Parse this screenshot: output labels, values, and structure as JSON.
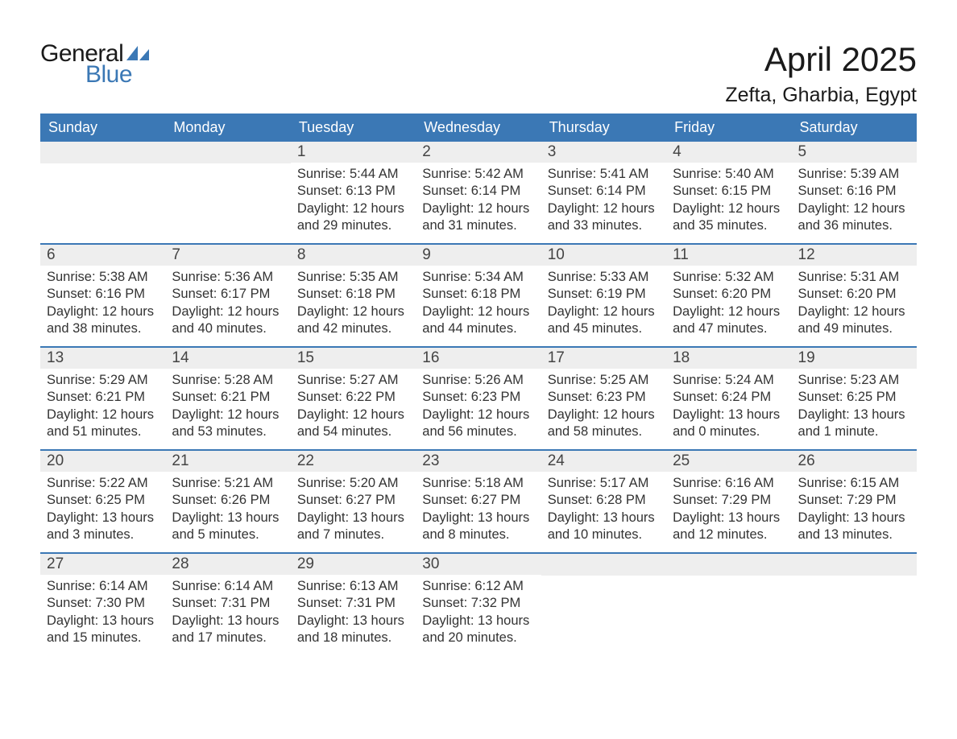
{
  "brand": {
    "word1": "General",
    "word2": "Blue",
    "icon_color": "#3b78b5"
  },
  "title": "April 2025",
  "location": "Zefta, Gharbia, Egypt",
  "header_bg": "#3b78b5",
  "header_fg": "#ffffff",
  "daynum_bg": "#eeeeee",
  "text_color": "#333333",
  "week_border": "#3b78b5",
  "days_of_week": [
    "Sunday",
    "Monday",
    "Tuesday",
    "Wednesday",
    "Thursday",
    "Friday",
    "Saturday"
  ],
  "weeks": [
    [
      {
        "n": "",
        "sunrise": "",
        "sunset": "",
        "daylight": ""
      },
      {
        "n": "",
        "sunrise": "",
        "sunset": "",
        "daylight": ""
      },
      {
        "n": "1",
        "sunrise": "Sunrise: 5:44 AM",
        "sunset": "Sunset: 6:13 PM",
        "daylight": "Daylight: 12 hours and 29 minutes."
      },
      {
        "n": "2",
        "sunrise": "Sunrise: 5:42 AM",
        "sunset": "Sunset: 6:14 PM",
        "daylight": "Daylight: 12 hours and 31 minutes."
      },
      {
        "n": "3",
        "sunrise": "Sunrise: 5:41 AM",
        "sunset": "Sunset: 6:14 PM",
        "daylight": "Daylight: 12 hours and 33 minutes."
      },
      {
        "n": "4",
        "sunrise": "Sunrise: 5:40 AM",
        "sunset": "Sunset: 6:15 PM",
        "daylight": "Daylight: 12 hours and 35 minutes."
      },
      {
        "n": "5",
        "sunrise": "Sunrise: 5:39 AM",
        "sunset": "Sunset: 6:16 PM",
        "daylight": "Daylight: 12 hours and 36 minutes."
      }
    ],
    [
      {
        "n": "6",
        "sunrise": "Sunrise: 5:38 AM",
        "sunset": "Sunset: 6:16 PM",
        "daylight": "Daylight: 12 hours and 38 minutes."
      },
      {
        "n": "7",
        "sunrise": "Sunrise: 5:36 AM",
        "sunset": "Sunset: 6:17 PM",
        "daylight": "Daylight: 12 hours and 40 minutes."
      },
      {
        "n": "8",
        "sunrise": "Sunrise: 5:35 AM",
        "sunset": "Sunset: 6:18 PM",
        "daylight": "Daylight: 12 hours and 42 minutes."
      },
      {
        "n": "9",
        "sunrise": "Sunrise: 5:34 AM",
        "sunset": "Sunset: 6:18 PM",
        "daylight": "Daylight: 12 hours and 44 minutes."
      },
      {
        "n": "10",
        "sunrise": "Sunrise: 5:33 AM",
        "sunset": "Sunset: 6:19 PM",
        "daylight": "Daylight: 12 hours and 45 minutes."
      },
      {
        "n": "11",
        "sunrise": "Sunrise: 5:32 AM",
        "sunset": "Sunset: 6:20 PM",
        "daylight": "Daylight: 12 hours and 47 minutes."
      },
      {
        "n": "12",
        "sunrise": "Sunrise: 5:31 AM",
        "sunset": "Sunset: 6:20 PM",
        "daylight": "Daylight: 12 hours and 49 minutes."
      }
    ],
    [
      {
        "n": "13",
        "sunrise": "Sunrise: 5:29 AM",
        "sunset": "Sunset: 6:21 PM",
        "daylight": "Daylight: 12 hours and 51 minutes."
      },
      {
        "n": "14",
        "sunrise": "Sunrise: 5:28 AM",
        "sunset": "Sunset: 6:21 PM",
        "daylight": "Daylight: 12 hours and 53 minutes."
      },
      {
        "n": "15",
        "sunrise": "Sunrise: 5:27 AM",
        "sunset": "Sunset: 6:22 PM",
        "daylight": "Daylight: 12 hours and 54 minutes."
      },
      {
        "n": "16",
        "sunrise": "Sunrise: 5:26 AM",
        "sunset": "Sunset: 6:23 PM",
        "daylight": "Daylight: 12 hours and 56 minutes."
      },
      {
        "n": "17",
        "sunrise": "Sunrise: 5:25 AM",
        "sunset": "Sunset: 6:23 PM",
        "daylight": "Daylight: 12 hours and 58 minutes."
      },
      {
        "n": "18",
        "sunrise": "Sunrise: 5:24 AM",
        "sunset": "Sunset: 6:24 PM",
        "daylight": "Daylight: 13 hours and 0 minutes."
      },
      {
        "n": "19",
        "sunrise": "Sunrise: 5:23 AM",
        "sunset": "Sunset: 6:25 PM",
        "daylight": "Daylight: 13 hours and 1 minute."
      }
    ],
    [
      {
        "n": "20",
        "sunrise": "Sunrise: 5:22 AM",
        "sunset": "Sunset: 6:25 PM",
        "daylight": "Daylight: 13 hours and 3 minutes."
      },
      {
        "n": "21",
        "sunrise": "Sunrise: 5:21 AM",
        "sunset": "Sunset: 6:26 PM",
        "daylight": "Daylight: 13 hours and 5 minutes."
      },
      {
        "n": "22",
        "sunrise": "Sunrise: 5:20 AM",
        "sunset": "Sunset: 6:27 PM",
        "daylight": "Daylight: 13 hours and 7 minutes."
      },
      {
        "n": "23",
        "sunrise": "Sunrise: 5:18 AM",
        "sunset": "Sunset: 6:27 PM",
        "daylight": "Daylight: 13 hours and 8 minutes."
      },
      {
        "n": "24",
        "sunrise": "Sunrise: 5:17 AM",
        "sunset": "Sunset: 6:28 PM",
        "daylight": "Daylight: 13 hours and 10 minutes."
      },
      {
        "n": "25",
        "sunrise": "Sunrise: 6:16 AM",
        "sunset": "Sunset: 7:29 PM",
        "daylight": "Daylight: 13 hours and 12 minutes."
      },
      {
        "n": "26",
        "sunrise": "Sunrise: 6:15 AM",
        "sunset": "Sunset: 7:29 PM",
        "daylight": "Daylight: 13 hours and 13 minutes."
      }
    ],
    [
      {
        "n": "27",
        "sunrise": "Sunrise: 6:14 AM",
        "sunset": "Sunset: 7:30 PM",
        "daylight": "Daylight: 13 hours and 15 minutes."
      },
      {
        "n": "28",
        "sunrise": "Sunrise: 6:14 AM",
        "sunset": "Sunset: 7:31 PM",
        "daylight": "Daylight: 13 hours and 17 minutes."
      },
      {
        "n": "29",
        "sunrise": "Sunrise: 6:13 AM",
        "sunset": "Sunset: 7:31 PM",
        "daylight": "Daylight: 13 hours and 18 minutes."
      },
      {
        "n": "30",
        "sunrise": "Sunrise: 6:12 AM",
        "sunset": "Sunset: 7:32 PM",
        "daylight": "Daylight: 13 hours and 20 minutes."
      },
      {
        "n": "",
        "sunrise": "",
        "sunset": "",
        "daylight": ""
      },
      {
        "n": "",
        "sunrise": "",
        "sunset": "",
        "daylight": ""
      },
      {
        "n": "",
        "sunrise": "",
        "sunset": "",
        "daylight": ""
      }
    ]
  ]
}
